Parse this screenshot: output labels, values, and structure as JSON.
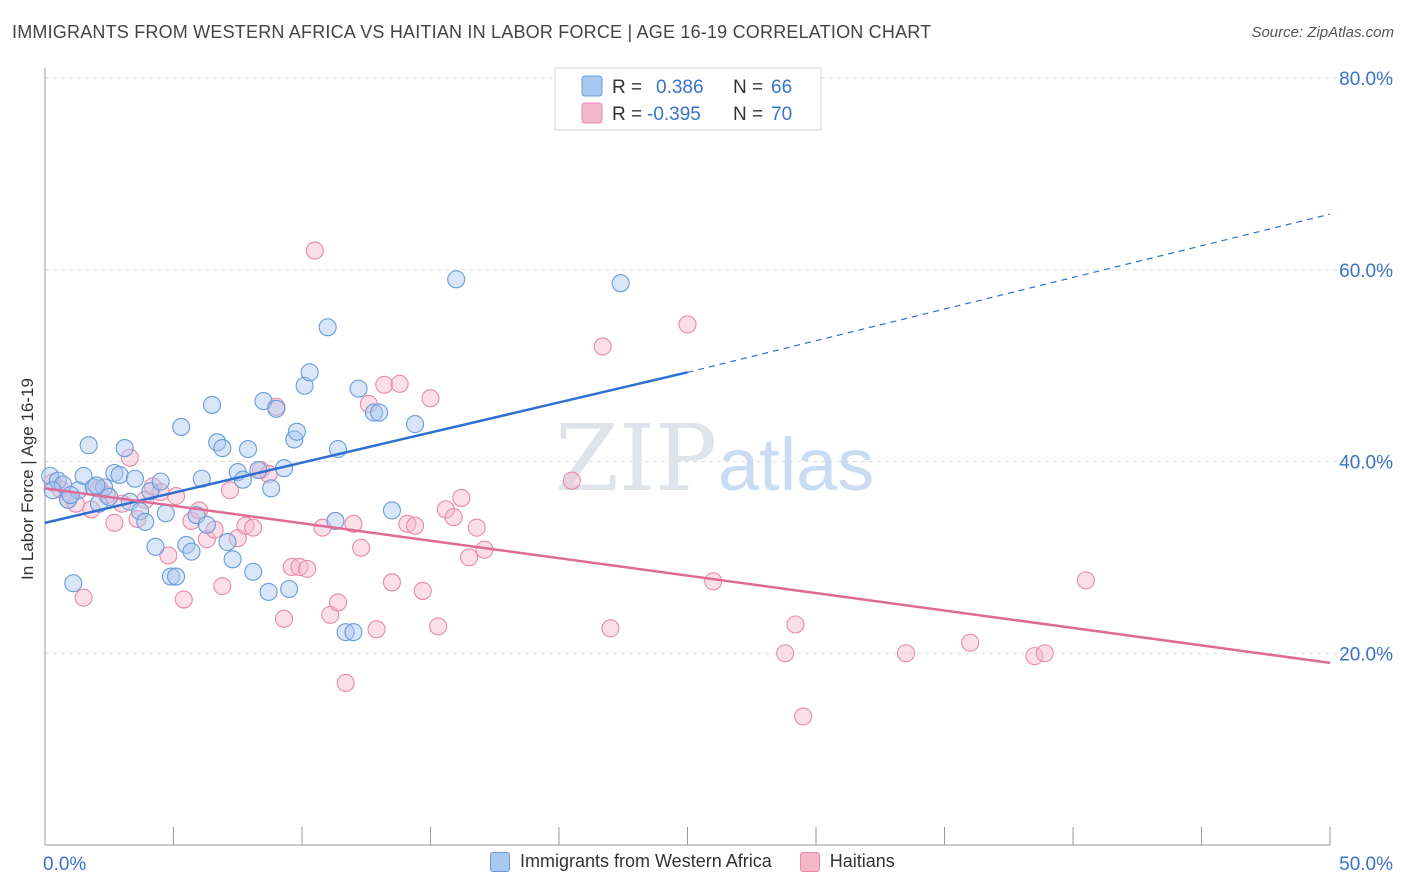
{
  "title": "IMMIGRANTS FROM WESTERN AFRICA VS HAITIAN IN LABOR FORCE | AGE 16-19 CORRELATION CHART",
  "source": "Source: ZipAtlas.com",
  "watermark": {
    "zip": "ZIP",
    "atlas": "atlas"
  },
  "legend_top": [
    {
      "r_label": "R =",
      "r_value": "0.386",
      "n_label": "N =",
      "n_value": "66"
    },
    {
      "r_label": "R =",
      "r_value": "-0.395",
      "n_label": "N =",
      "n_value": "70"
    }
  ],
  "legend_bottom": [
    "Immigrants from Western Africa",
    "Haitians"
  ],
  "colors": {
    "blue_fill": "#a8c8f0",
    "blue_stroke": "#6a9bd8",
    "blue_line": "#2e6fcf",
    "pink_fill": "#f5b8cb",
    "pink_stroke": "#e88aa8",
    "pink_line": "#e06a94",
    "value_text": "#3a72c8",
    "grid": "#d8dce6"
  },
  "chart_data": {
    "type": "scatter",
    "xlabel": "",
    "ylabel": "In Labor Force | Age 16-19",
    "xlim": [
      0,
      50
    ],
    "ylim": [
      0,
      80
    ],
    "x_tick_labels": [
      "0.0%",
      "50.0%"
    ],
    "y_tick_labels": [
      "20.0%",
      "40.0%",
      "60.0%",
      "80.0%"
    ],
    "y_ticks": [
      20,
      40,
      60,
      80
    ],
    "grid": "horizontal dashed",
    "legend_placement": "top-center and bottom",
    "series": [
      {
        "name": "Immigrants from Western Africa",
        "trend": {
          "x": [
            0,
            25
          ],
          "y": [
            33.6,
            49.3
          ],
          "extended_to": [
            50,
            65.8
          ]
        },
        "points": [
          [
            0.2,
            38.5
          ],
          [
            0.5,
            38.0
          ],
          [
            0.7,
            37.6
          ],
          [
            0.9,
            36.0
          ],
          [
            1.1,
            27.3
          ],
          [
            1.3,
            37.0
          ],
          [
            1.5,
            38.5
          ],
          [
            1.7,
            41.7
          ],
          [
            1.9,
            37.3
          ],
          [
            2.1,
            35.6
          ],
          [
            2.3,
            37.3
          ],
          [
            2.5,
            36.3
          ],
          [
            2.7,
            38.8
          ],
          [
            2.9,
            38.6
          ],
          [
            3.1,
            41.4
          ],
          [
            3.3,
            35.8
          ],
          [
            3.5,
            38.2
          ],
          [
            3.7,
            34.8
          ],
          [
            3.9,
            33.7
          ],
          [
            4.1,
            36.9
          ],
          [
            4.3,
            31.1
          ],
          [
            4.5,
            37.9
          ],
          [
            4.7,
            34.6
          ],
          [
            4.9,
            28.0
          ],
          [
            5.1,
            28.0
          ],
          [
            5.3,
            43.6
          ],
          [
            5.5,
            31.3
          ],
          [
            5.7,
            30.6
          ],
          [
            5.9,
            34.4
          ],
          [
            6.1,
            38.2
          ],
          [
            6.3,
            33.4
          ],
          [
            6.5,
            45.9
          ],
          [
            6.7,
            42.0
          ],
          [
            6.9,
            41.4
          ],
          [
            7.1,
            31.6
          ],
          [
            7.3,
            29.8
          ],
          [
            7.5,
            38.9
          ],
          [
            7.7,
            38.1
          ],
          [
            7.9,
            41.3
          ],
          [
            8.1,
            28.5
          ],
          [
            8.3,
            39.1
          ],
          [
            8.5,
            46.3
          ],
          [
            8.7,
            26.4
          ],
          [
            8.8,
            37.2
          ],
          [
            9.0,
            45.5
          ],
          [
            9.3,
            39.3
          ],
          [
            9.5,
            26.7
          ],
          [
            9.7,
            42.3
          ],
          [
            9.8,
            43.1
          ],
          [
            10.1,
            47.9
          ],
          [
            10.3,
            49.3
          ],
          [
            11.0,
            54.0
          ],
          [
            11.3,
            33.8
          ],
          [
            11.4,
            41.3
          ],
          [
            11.7,
            22.2
          ],
          [
            12.0,
            22.2
          ],
          [
            12.2,
            47.6
          ],
          [
            12.8,
            45.1
          ],
          [
            13.0,
            45.1
          ],
          [
            13.5,
            34.9
          ],
          [
            14.4,
            43.9
          ],
          [
            16.0,
            59.0
          ],
          [
            22.4,
            58.6
          ],
          [
            0.3,
            37.0
          ],
          [
            1.0,
            36.5
          ],
          [
            2.0,
            37.5
          ]
        ]
      },
      {
        "name": "Haitians",
        "trend": {
          "x": [
            0,
            50
          ],
          "y": [
            37.2,
            19.0
          ]
        },
        "points": [
          [
            0.3,
            37.8
          ],
          [
            0.6,
            37.1
          ],
          [
            0.9,
            36.0
          ],
          [
            1.2,
            35.6
          ],
          [
            1.5,
            25.8
          ],
          [
            1.8,
            35.0
          ],
          [
            2.1,
            37.2
          ],
          [
            2.4,
            36.5
          ],
          [
            2.7,
            33.6
          ],
          [
            3.0,
            35.6
          ],
          [
            3.3,
            40.4
          ],
          [
            3.6,
            34.0
          ],
          [
            3.9,
            36.0
          ],
          [
            4.2,
            37.4
          ],
          [
            4.5,
            36.8
          ],
          [
            4.8,
            30.2
          ],
          [
            5.1,
            36.4
          ],
          [
            5.4,
            25.6
          ],
          [
            5.7,
            33.8
          ],
          [
            6.0,
            34.9
          ],
          [
            6.3,
            31.9
          ],
          [
            6.6,
            32.9
          ],
          [
            6.9,
            27.0
          ],
          [
            7.2,
            37.0
          ],
          [
            7.5,
            32.0
          ],
          [
            7.8,
            33.3
          ],
          [
            8.1,
            33.1
          ],
          [
            8.4,
            39.1
          ],
          [
            8.7,
            38.7
          ],
          [
            9.0,
            45.7
          ],
          [
            9.3,
            23.6
          ],
          [
            9.6,
            29.0
          ],
          [
            9.9,
            29.0
          ],
          [
            10.2,
            28.8
          ],
          [
            10.5,
            62.0
          ],
          [
            10.8,
            33.1
          ],
          [
            11.1,
            24.0
          ],
          [
            11.4,
            25.3
          ],
          [
            11.7,
            16.9
          ],
          [
            12.0,
            33.5
          ],
          [
            12.3,
            31.0
          ],
          [
            12.6,
            46.0
          ],
          [
            12.9,
            22.5
          ],
          [
            13.2,
            48.0
          ],
          [
            13.5,
            27.4
          ],
          [
            13.8,
            48.1
          ],
          [
            14.1,
            33.5
          ],
          [
            14.4,
            33.3
          ],
          [
            14.7,
            26.5
          ],
          [
            15.0,
            46.6
          ],
          [
            15.3,
            22.8
          ],
          [
            15.6,
            35.0
          ],
          [
            15.9,
            34.2
          ],
          [
            16.2,
            36.2
          ],
          [
            16.5,
            30.0
          ],
          [
            16.8,
            33.1
          ],
          [
            17.1,
            30.8
          ],
          [
            20.5,
            38.0
          ],
          [
            21.7,
            52.0
          ],
          [
            22.0,
            22.6
          ],
          [
            25.0,
            54.3
          ],
          [
            26.0,
            27.5
          ],
          [
            28.8,
            20.0
          ],
          [
            29.2,
            23.0
          ],
          [
            29.5,
            13.4
          ],
          [
            33.5,
            20.0
          ],
          [
            36.0,
            21.1
          ],
          [
            38.5,
            19.7
          ],
          [
            38.9,
            20.0
          ],
          [
            40.5,
            27.6
          ]
        ]
      }
    ]
  }
}
